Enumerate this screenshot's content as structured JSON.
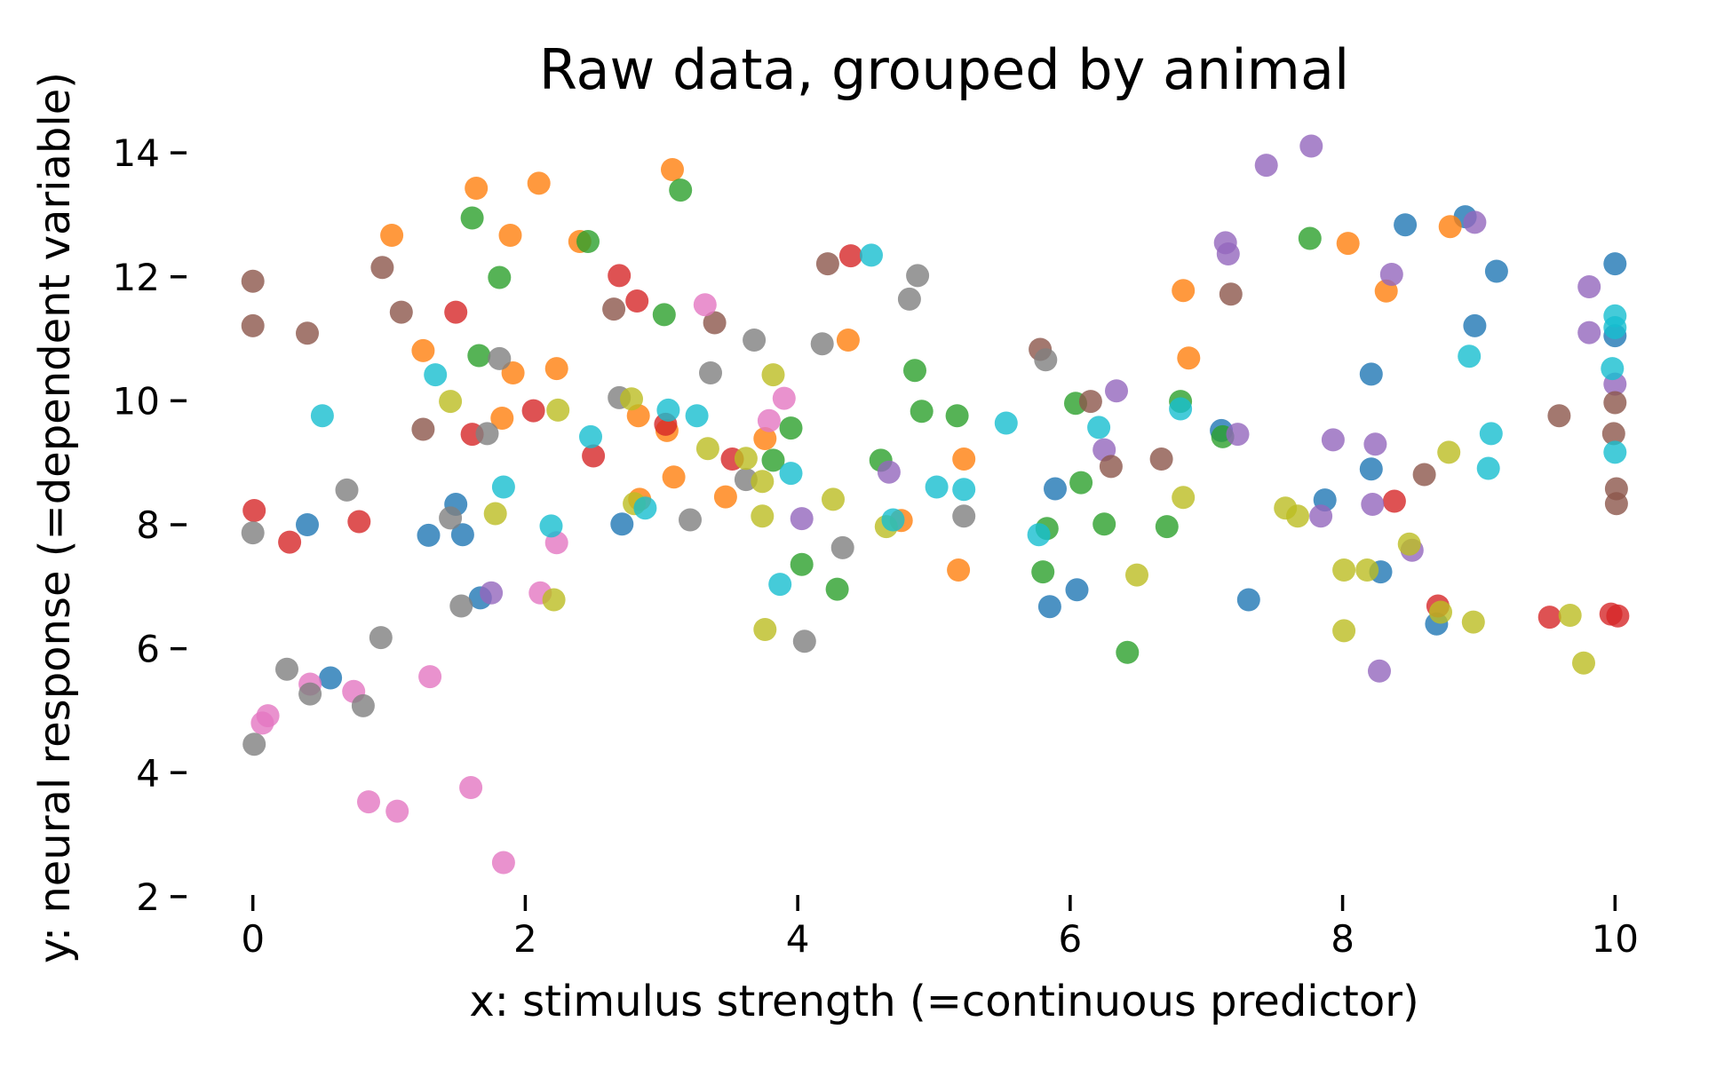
{
  "chart_data": {
    "type": "scatter",
    "title": "Raw data, grouped by animal",
    "xlabel": "x: stimulus strength (=continuous predictor)",
    "ylabel": "y: neural response (=dependent variable)",
    "xlim": [
      -0.5,
      10.5
    ],
    "ylim": [
      1.97,
      14.69
    ],
    "xticks": [
      0,
      2,
      4,
      6,
      8,
      10
    ],
    "yticks": [
      2,
      4,
      6,
      8,
      10,
      12,
      14
    ],
    "grid": false,
    "legend": false,
    "marker_opacity": 0.8,
    "series": [
      {
        "name": "animal-blue",
        "color": "#1f77b4",
        "points": [
          [
            8.46,
            12.84
          ],
          [
            8.9,
            12.97
          ],
          [
            9.13,
            12.09
          ],
          [
            10,
            12.21
          ],
          [
            8.21,
            10.43
          ],
          [
            10,
            11.05
          ],
          [
            8.97,
            11.21
          ],
          [
            8.21,
            8.9
          ],
          [
            7.87,
            8.4
          ],
          [
            7.11,
            9.52
          ],
          [
            5.89,
            8.58
          ],
          [
            6.05,
            6.95
          ],
          [
            5.85,
            6.68
          ],
          [
            7.31,
            6.79
          ],
          [
            8.28,
            7.24
          ],
          [
            8.69,
            6.4
          ],
          [
            0.4,
            8.0
          ],
          [
            1.29,
            7.83
          ],
          [
            1.49,
            8.33
          ],
          [
            1.54,
            7.84
          ],
          [
            1.67,
            6.82
          ],
          [
            2.71,
            8.01
          ],
          [
            0.57,
            5.53
          ]
        ]
      },
      {
        "name": "animal-orange",
        "color": "#ff7f0e",
        "points": [
          [
            1.64,
            13.43
          ],
          [
            2.1,
            13.51
          ],
          [
            1.89,
            12.67
          ],
          [
            1.02,
            12.67
          ],
          [
            1.25,
            10.81
          ],
          [
            1.91,
            10.45
          ],
          [
            2.23,
            10.52
          ],
          [
            3.08,
            13.73
          ],
          [
            2.4,
            12.57
          ],
          [
            4.37,
            10.98
          ],
          [
            8.04,
            12.54
          ],
          [
            6.83,
            11.78
          ],
          [
            6.87,
            10.69
          ],
          [
            8.79,
            12.81
          ],
          [
            8.32,
            11.77
          ],
          [
            1.83,
            9.72
          ],
          [
            2.83,
            9.76
          ],
          [
            3.04,
            9.52
          ],
          [
            3.76,
            9.39
          ],
          [
            3.09,
            8.77
          ],
          [
            3.47,
            8.45
          ],
          [
            2.84,
            8.41
          ],
          [
            5.22,
            9.06
          ],
          [
            4.76,
            8.07
          ],
          [
            5.18,
            7.27
          ]
        ]
      },
      {
        "name": "animal-green",
        "color": "#2ca02c",
        "points": [
          [
            1.61,
            12.95
          ],
          [
            1.81,
            11.99
          ],
          [
            1.66,
            10.73
          ],
          [
            3.14,
            13.4
          ],
          [
            2.46,
            12.57
          ],
          [
            3.02,
            11.39
          ],
          [
            4.86,
            10.49
          ],
          [
            7.76,
            12.62
          ],
          [
            6.04,
            9.96
          ],
          [
            6.81,
            9.99
          ],
          [
            7.12,
            9.42
          ],
          [
            6.08,
            8.68
          ],
          [
            5.83,
            7.94
          ],
          [
            6.25,
            8.01
          ],
          [
            6.71,
            7.97
          ],
          [
            5.8,
            7.24
          ],
          [
            6.42,
            5.94
          ],
          [
            3.95,
            9.56
          ],
          [
            3.82,
            9.04
          ],
          [
            4.61,
            9.04
          ],
          [
            4.91,
            9.83
          ],
          [
            5.17,
            9.76
          ],
          [
            4.03,
            7.36
          ],
          [
            4.29,
            6.96
          ]
        ]
      },
      {
        "name": "animal-red",
        "color": "#d62728",
        "points": [
          [
            1.49,
            11.43
          ],
          [
            2.69,
            12.02
          ],
          [
            2.82,
            11.61
          ],
          [
            4.39,
            12.34
          ],
          [
            8.38,
            8.38
          ],
          [
            8.7,
            6.69
          ],
          [
            9.52,
            6.51
          ],
          [
            9.97,
            6.56
          ],
          [
            10.02,
            6.53
          ],
          [
            1.61,
            9.46
          ],
          [
            2.06,
            9.84
          ],
          [
            0.01,
            8.23
          ],
          [
            0.27,
            7.72
          ],
          [
            0.78,
            8.05
          ],
          [
            3.03,
            9.62
          ],
          [
            2.5,
            9.11
          ],
          [
            3.52,
            9.06
          ]
        ]
      },
      {
        "name": "animal-purple",
        "color": "#9467bd",
        "points": [
          [
            7.77,
            14.11
          ],
          [
            7.44,
            13.8
          ],
          [
            7.14,
            12.55
          ],
          [
            7.16,
            12.37
          ],
          [
            8.97,
            12.88
          ],
          [
            8.36,
            12.04
          ],
          [
            9.81,
            11.84
          ],
          [
            9.81,
            11.1
          ],
          [
            6.34,
            10.16
          ],
          [
            6.25,
            9.21
          ],
          [
            7.23,
            9.46
          ],
          [
            7.93,
            9.37
          ],
          [
            8.24,
            9.3
          ],
          [
            7.84,
            8.14
          ],
          [
            8.22,
            8.33
          ],
          [
            10,
            10.27
          ],
          [
            8.51,
            7.59
          ],
          [
            1.75,
            6.9
          ],
          [
            4.03,
            8.1
          ],
          [
            4.67,
            8.85
          ],
          [
            8.27,
            5.64
          ]
        ]
      },
      {
        "name": "animal-brown",
        "color": "#8c564b",
        "points": [
          [
            0.95,
            12.15
          ],
          [
            0,
            11.93
          ],
          [
            0,
            11.21
          ],
          [
            0.4,
            11.09
          ],
          [
            1.09,
            11.43
          ],
          [
            2.65,
            11.48
          ],
          [
            3.39,
            11.26
          ],
          [
            4.22,
            12.21
          ],
          [
            7.18,
            11.72
          ],
          [
            5.78,
            10.83
          ],
          [
            6.15,
            9.99
          ],
          [
            6.3,
            8.94
          ],
          [
            6.67,
            9.06
          ],
          [
            10,
            9.97
          ],
          [
            9.99,
            9.47
          ],
          [
            10.01,
            8.58
          ],
          [
            10.01,
            8.34
          ],
          [
            9.59,
            9.76
          ],
          [
            8.6,
            8.81
          ],
          [
            1.25,
            9.54
          ]
        ]
      },
      {
        "name": "animal-pink",
        "color": "#e377c2",
        "points": [
          [
            3.32,
            11.55
          ],
          [
            2.23,
            7.71
          ],
          [
            2.11,
            6.9
          ],
          [
            3.9,
            10.04
          ],
          [
            3.79,
            9.68
          ],
          [
            0.42,
            5.43
          ],
          [
            0.74,
            5.31
          ],
          [
            1.3,
            5.55
          ],
          [
            0.11,
            4.92
          ],
          [
            0.07,
            4.8
          ],
          [
            0.85,
            3.53
          ],
          [
            1.06,
            3.38
          ],
          [
            1.6,
            3.76
          ],
          [
            1.84,
            2.55
          ]
        ]
      },
      {
        "name": "animal-gray",
        "color": "#7f7f7f",
        "points": [
          [
            1.81,
            10.68
          ],
          [
            3.68,
            10.98
          ],
          [
            4.88,
            12.02
          ],
          [
            4.82,
            11.64
          ],
          [
            4.18,
            10.92
          ],
          [
            5.82,
            10.66
          ],
          [
            1.72,
            9.47
          ],
          [
            0.69,
            8.56
          ],
          [
            0,
            7.87
          ],
          [
            1.45,
            8.11
          ],
          [
            1.53,
            6.69
          ],
          [
            0.94,
            6.18
          ],
          [
            3.36,
            10.45
          ],
          [
            2.69,
            10.05
          ],
          [
            3.62,
            8.73
          ],
          [
            3.21,
            8.08
          ],
          [
            5.22,
            8.14
          ],
          [
            4.33,
            7.63
          ],
          [
            4.05,
            6.12
          ],
          [
            0.25,
            5.67
          ],
          [
            0.42,
            5.27
          ],
          [
            0.81,
            5.08
          ],
          [
            0.01,
            4.46
          ]
        ]
      },
      {
        "name": "animal-olive",
        "color": "#bcbd22",
        "points": [
          [
            6.83,
            8.44
          ],
          [
            7.58,
            8.27
          ],
          [
            7.67,
            8.14
          ],
          [
            6.49,
            7.19
          ],
          [
            8.01,
            7.27
          ],
          [
            8.18,
            7.27
          ],
          [
            8.01,
            6.29
          ],
          [
            8.78,
            9.17
          ],
          [
            8.49,
            7.69
          ],
          [
            8.72,
            6.59
          ],
          [
            8.96,
            6.43
          ],
          [
            9.67,
            6.54
          ],
          [
            9.77,
            5.77
          ],
          [
            1.45,
            9.99
          ],
          [
            2.24,
            9.85
          ],
          [
            1.78,
            8.18
          ],
          [
            2.21,
            6.79
          ],
          [
            3.82,
            10.42
          ],
          [
            2.78,
            10.03
          ],
          [
            3.34,
            9.23
          ],
          [
            3.62,
            9.07
          ],
          [
            3.74,
            8.7
          ],
          [
            2.8,
            8.34
          ],
          [
            3.74,
            8.14
          ],
          [
            4.26,
            8.41
          ],
          [
            4.65,
            7.97
          ],
          [
            3.76,
            6.31
          ]
        ]
      },
      {
        "name": "animal-cyan",
        "color": "#17becf",
        "points": [
          [
            1.34,
            10.42
          ],
          [
            4.54,
            12.35
          ],
          [
            10,
            11.37
          ],
          [
            10,
            11.18
          ],
          [
            8.93,
            10.72
          ],
          [
            9.98,
            10.52
          ],
          [
            5.53,
            9.64
          ],
          [
            6.21,
            9.57
          ],
          [
            6.81,
            9.87
          ],
          [
            5.77,
            7.84
          ],
          [
            10,
            9.17
          ],
          [
            9.09,
            9.47
          ],
          [
            9.07,
            8.91
          ],
          [
            0.51,
            9.76
          ],
          [
            1.84,
            8.61
          ],
          [
            2.19,
            7.98
          ],
          [
            3.05,
            9.85
          ],
          [
            3.26,
            9.76
          ],
          [
            2.48,
            9.42
          ],
          [
            3.95,
            8.83
          ],
          [
            2.88,
            8.27
          ],
          [
            5.02,
            8.61
          ],
          [
            5.22,
            8.57
          ],
          [
            4.7,
            8.08
          ],
          [
            3.87,
            7.04
          ]
        ]
      }
    ]
  }
}
